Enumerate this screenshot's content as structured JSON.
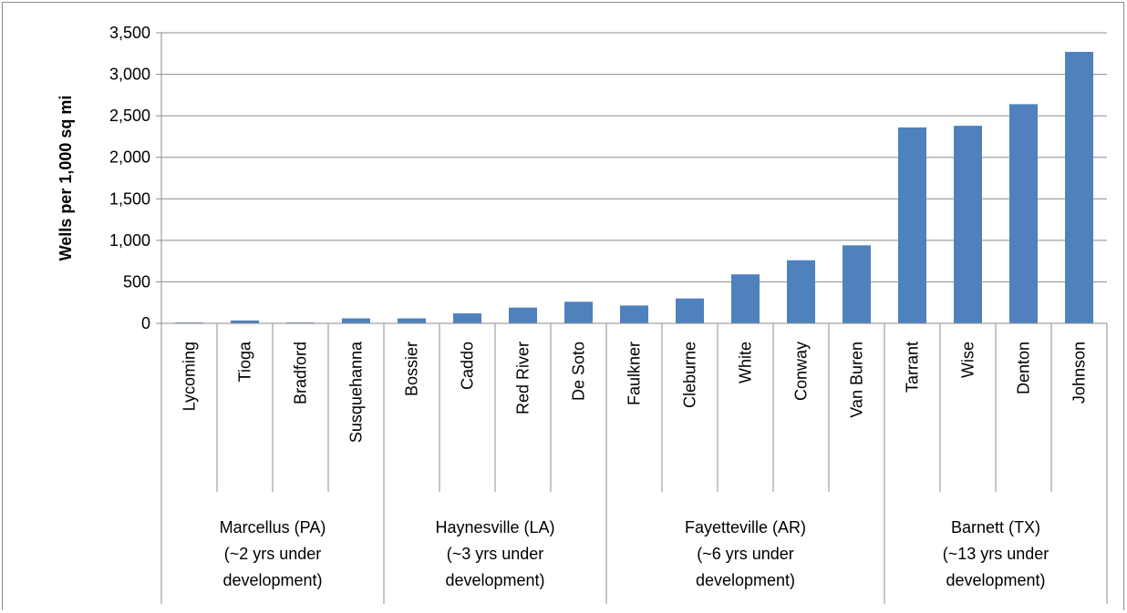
{
  "chart_data": {
    "type": "bar",
    "title": "",
    "xlabel": "",
    "ylabel": "Wells per 1,000 sq mi",
    "ylim": [
      0,
      3500
    ],
    "yticks": [
      "0",
      "500",
      "1,000",
      "1,500",
      "2,000",
      "2,500",
      "3,000",
      "3,500"
    ],
    "ytick_values": [
      0,
      500,
      1000,
      1500,
      2000,
      2500,
      3000,
      3500
    ],
    "grid": true,
    "legend": "none",
    "bar_color": "#4f81bd",
    "categories": [
      "Lycoming",
      "Tioga",
      "Bradford",
      "Susquehanna",
      "Bossier",
      "Caddo",
      "Red River",
      "De Soto",
      "Faulkner",
      "Cleburne",
      "White",
      "Conway",
      "Van Buren",
      "Tarrant",
      "Wise",
      "Denton",
      "Johnson"
    ],
    "values": [
      10,
      35,
      10,
      60,
      60,
      120,
      190,
      260,
      215,
      300,
      590,
      760,
      940,
      2360,
      2380,
      2640,
      3270
    ],
    "groups": [
      {
        "lines": [
          "Marcellus (PA)",
          "(~2 yrs under",
          "development)"
        ],
        "count": 4
      },
      {
        "lines": [
          "Haynesville (LA)",
          "(~3 yrs under",
          "development)"
        ],
        "count": 4
      },
      {
        "lines": [
          "Fayetteville (AR)",
          "(~6 yrs under",
          "development)"
        ],
        "count": 5
      },
      {
        "lines": [
          "Barnett (TX)",
          "(~13 yrs under",
          "development)"
        ],
        "count": 4
      }
    ]
  }
}
